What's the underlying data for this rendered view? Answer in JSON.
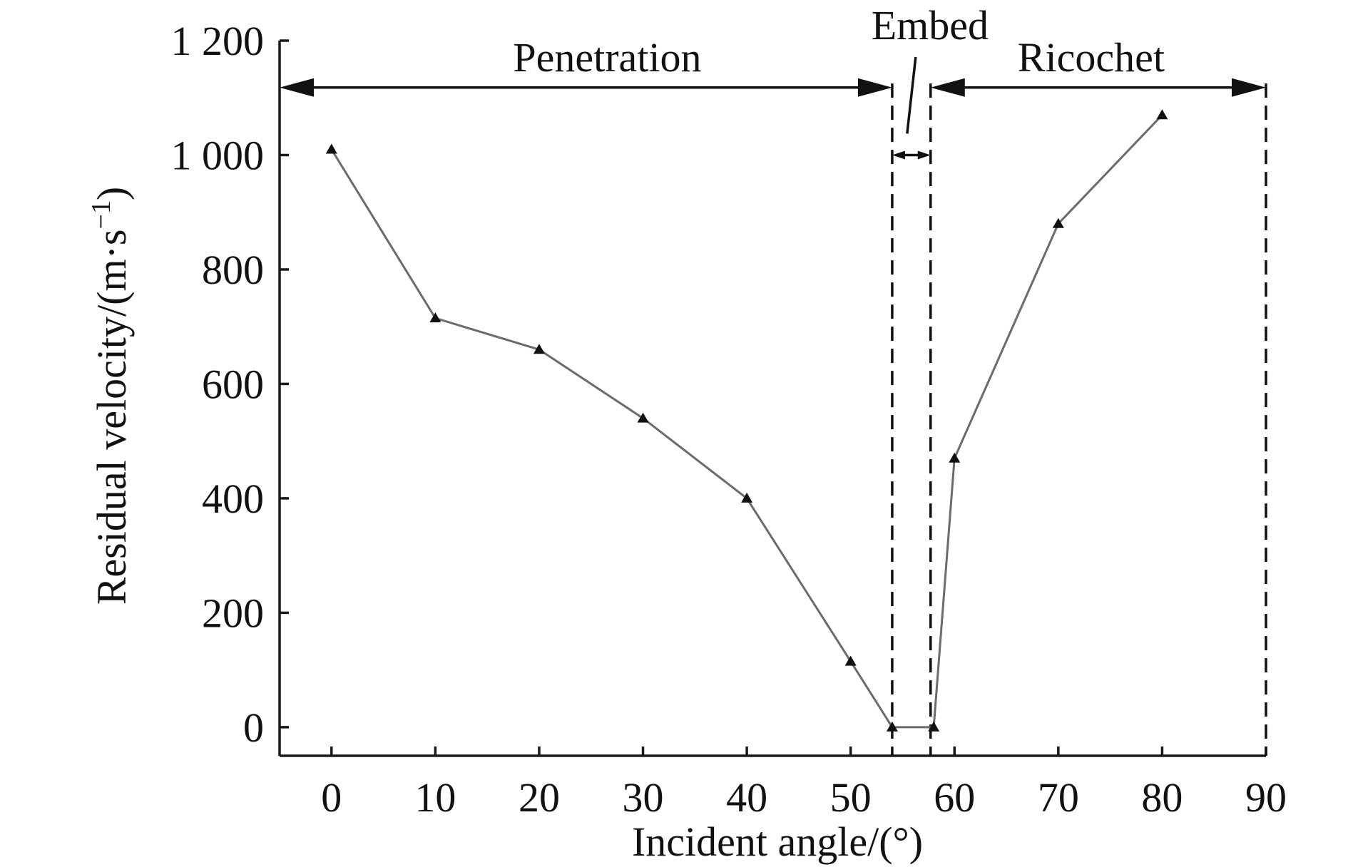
{
  "chart_data": {
    "type": "line",
    "title": "",
    "xlabel": "Incident angle/(°)",
    "ylabel_main": "Residual velocity/(m·s",
    "ylabel_sup": "−1",
    "ylabel_close": ")",
    "xlim": [
      -5,
      90
    ],
    "ylim": [
      -50,
      1200
    ],
    "x_ticks": [
      0,
      10,
      20,
      30,
      40,
      50,
      60,
      70,
      80,
      90
    ],
    "x_tick_labels": [
      "0",
      "10",
      "20",
      "30",
      "40",
      "50",
      "60",
      "70",
      "80",
      "90"
    ],
    "y_ticks": [
      0,
      200,
      400,
      600,
      800,
      1000,
      1200
    ],
    "y_tick_labels": [
      "0",
      "200",
      "400",
      "600",
      "800",
      "1 000",
      "1 200"
    ],
    "grid": false,
    "series": [
      {
        "x": [
          0,
          10,
          20,
          30,
          40,
          50,
          54,
          58,
          60,
          70,
          80
        ],
        "y": [
          1010,
          715,
          660,
          540,
          400,
          115,
          0,
          0,
          470,
          880,
          1070
        ]
      }
    ],
    "regions": [
      {
        "label": "Penetration",
        "from": -5,
        "to": 54
      },
      {
        "label": "Embed",
        "from": 54,
        "to": 57.7
      },
      {
        "label": "Ricochet",
        "from": 57.7,
        "to": 90
      }
    ],
    "dashed_verticals": [
      54,
      57.7,
      90
    ],
    "colors": {
      "axis": "#1a1a1a",
      "series": "#6b6b6b",
      "marker": "#111111"
    }
  }
}
